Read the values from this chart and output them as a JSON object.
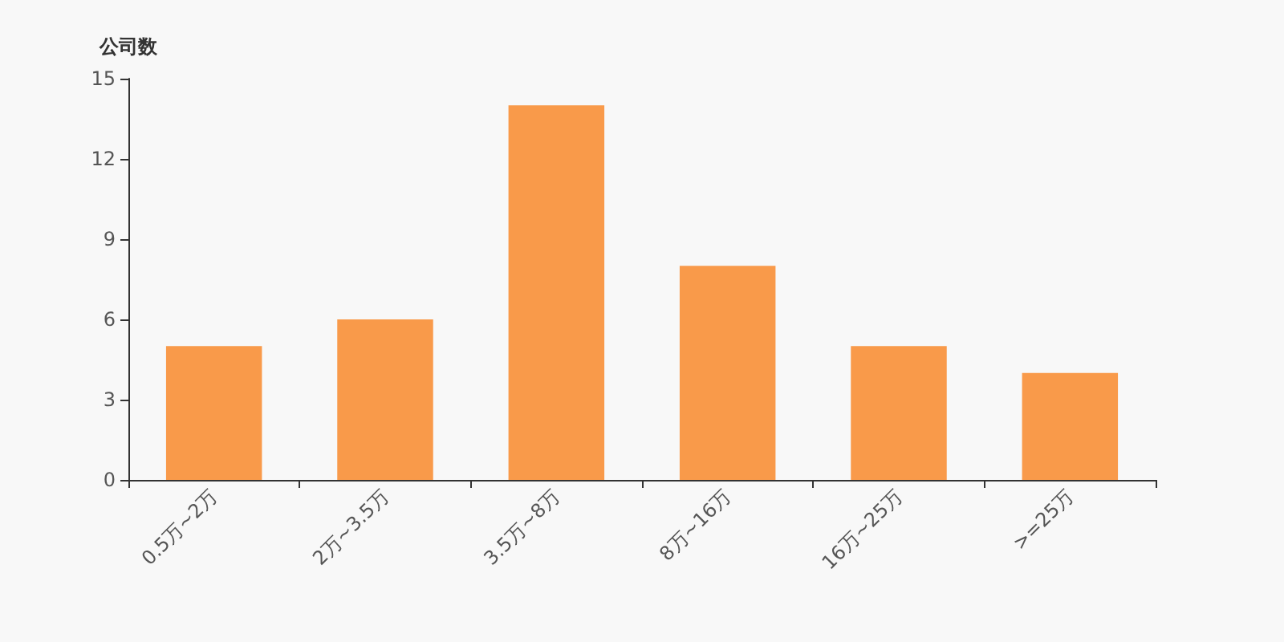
{
  "chart_data": {
    "type": "bar",
    "ylabel": "公司数",
    "categories": [
      "0.5万~2万",
      "2万~3.5万",
      "3.5万~8万",
      "8万~16万",
      "16万~25万",
      ">=25万"
    ],
    "values": [
      5,
      6,
      14,
      8,
      5,
      4
    ],
    "color": "#f99a4a",
    "ylim": [
      0,
      15
    ],
    "yticks": [
      0,
      3,
      6,
      9,
      12,
      15
    ]
  }
}
